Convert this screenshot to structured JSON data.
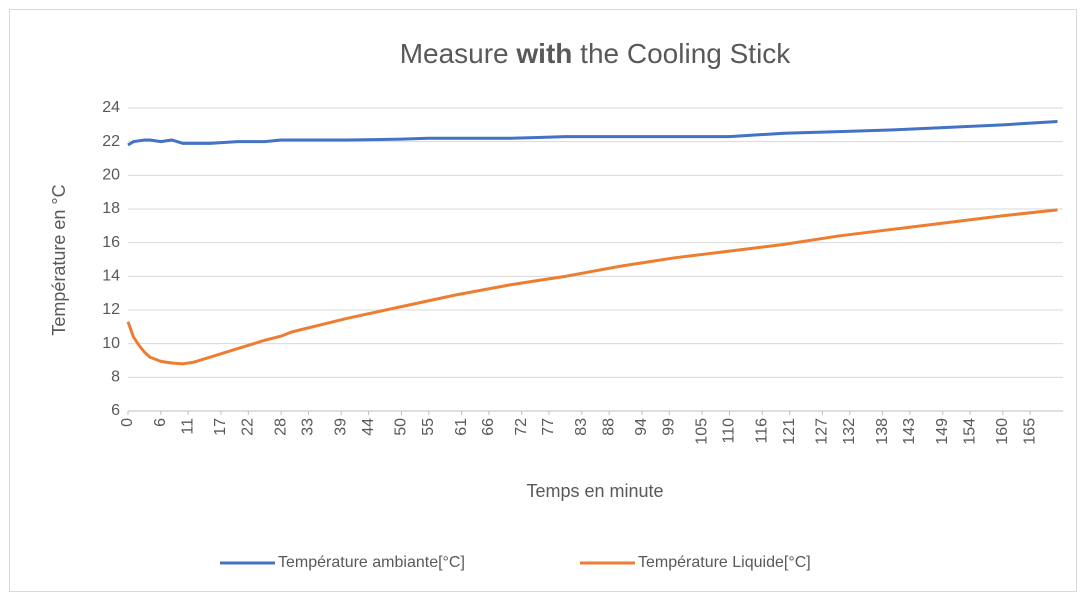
{
  "chart_data": {
    "type": "line",
    "title": [
      "Measure ",
      "with",
      " the Cooling Stick"
    ],
    "x_label": "Temps en minute",
    "y_label": "Température en °C",
    "x": [
      0,
      1,
      2,
      3,
      4,
      6,
      8,
      10,
      12,
      15,
      20,
      25,
      28,
      30,
      40,
      50,
      55,
      60,
      70,
      75,
      80,
      90,
      100,
      110,
      115,
      120,
      130,
      140,
      150,
      160,
      170
    ],
    "series": [
      {
        "name": "Température ambiante[°C]",
        "color": "#4472c4",
        "values": [
          21.8,
          22.0,
          22.05,
          22.1,
          22.1,
          22.0,
          22.1,
          21.9,
          21.9,
          21.9,
          22.0,
          22.0,
          22.1,
          22.1,
          22.1,
          22.15,
          22.2,
          22.2,
          22.2,
          22.25,
          22.3,
          22.3,
          22.3,
          22.3,
          22.4,
          22.5,
          22.6,
          22.7,
          22.85,
          23.0,
          23.2
        ]
      },
      {
        "name": "Température Liquide[°C]",
        "color": "#ed7d31",
        "values": [
          11.3,
          10.4,
          9.9,
          9.5,
          9.2,
          8.95,
          8.85,
          8.8,
          8.9,
          9.2,
          9.7,
          10.2,
          10.45,
          10.7,
          11.5,
          12.2,
          12.55,
          12.9,
          13.5,
          13.75,
          14.0,
          14.6,
          15.1,
          15.5,
          15.7,
          15.9,
          16.4,
          16.8,
          17.2,
          17.6,
          17.95
        ]
      }
    ],
    "xlim": [
      0,
      171
    ],
    "xticks": [
      0,
      6,
      11,
      17,
      22,
      28,
      33,
      39,
      44,
      50,
      55,
      61,
      66,
      72,
      77,
      83,
      88,
      94,
      99,
      105,
      110,
      116,
      121,
      127,
      132,
      138,
      143,
      149,
      154,
      160,
      165
    ],
    "ylim": [
      6,
      24
    ],
    "yticks": [
      6,
      8,
      10,
      12,
      14,
      16,
      18,
      20,
      22,
      24
    ],
    "grid": true,
    "legend": "bottom"
  }
}
